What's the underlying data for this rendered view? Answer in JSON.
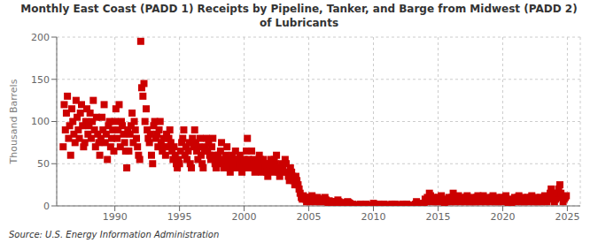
{
  "chart_data": {
    "type": "scatter",
    "title": "Monthly East Coast (PADD 1) Receipts by Pipeline, Tanker, and Barge from Midwest (PADD 2)\nof Lubricants",
    "y_label": "Thousand Barrels",
    "annotations": [
      "Source: U.S. Energy Information Administration"
    ],
    "color": "#cc0000",
    "marker": "square",
    "grid": true,
    "xlim": [
      1985.5,
      2026
    ],
    "ylim": [
      0,
      200
    ],
    "yticks": [
      0,
      50,
      100,
      150,
      200
    ],
    "xticks": [
      1990,
      1995,
      2000,
      2005,
      2010,
      2015,
      2020,
      2025
    ],
    "x": [
      1986.0,
      1986.08,
      1986.17,
      1986.25,
      1986.33,
      1986.42,
      1986.5,
      1986.58,
      1986.67,
      1986.75,
      1986.83,
      1986.92,
      1987.0,
      1987.08,
      1987.17,
      1987.25,
      1987.33,
      1987.42,
      1987.5,
      1987.58,
      1987.67,
      1987.75,
      1987.83,
      1987.92,
      1988.0,
      1988.08,
      1988.17,
      1988.25,
      1988.33,
      1988.42,
      1988.5,
      1988.58,
      1988.67,
      1988.75,
      1988.83,
      1988.92,
      1989.0,
      1989.08,
      1989.17,
      1989.25,
      1989.33,
      1989.42,
      1989.5,
      1989.58,
      1989.67,
      1989.75,
      1989.83,
      1989.92,
      1990.0,
      1990.08,
      1990.17,
      1990.25,
      1990.33,
      1990.42,
      1990.5,
      1990.58,
      1990.67,
      1990.75,
      1990.83,
      1990.92,
      1991.0,
      1991.08,
      1991.17,
      1991.25,
      1991.33,
      1991.42,
      1991.5,
      1991.58,
      1991.67,
      1991.75,
      1991.83,
      1991.92,
      1992.0,
      1992.08,
      1992.17,
      1992.25,
      1992.33,
      1992.42,
      1992.5,
      1992.58,
      1992.67,
      1992.75,
      1992.83,
      1992.92,
      1993.0,
      1993.08,
      1993.17,
      1993.25,
      1993.33,
      1993.42,
      1993.5,
      1993.58,
      1993.67,
      1993.75,
      1993.83,
      1993.92,
      1994.0,
      1994.08,
      1994.17,
      1994.25,
      1994.33,
      1994.42,
      1994.5,
      1994.58,
      1994.67,
      1994.75,
      1994.83,
      1994.92,
      1995.0,
      1995.08,
      1995.17,
      1995.25,
      1995.33,
      1995.42,
      1995.5,
      1995.58,
      1995.67,
      1995.75,
      1995.83,
      1995.92,
      1996.0,
      1996.08,
      1996.17,
      1996.25,
      1996.33,
      1996.42,
      1996.5,
      1996.58,
      1996.67,
      1996.75,
      1996.83,
      1996.92,
      1997.0,
      1997.08,
      1997.17,
      1997.25,
      1997.33,
      1997.42,
      1997.5,
      1997.58,
      1997.67,
      1997.75,
      1997.83,
      1997.92,
      1998.0,
      1998.08,
      1998.17,
      1998.25,
      1998.33,
      1998.42,
      1998.5,
      1998.58,
      1998.67,
      1998.75,
      1998.83,
      1998.92,
      1999.0,
      1999.08,
      1999.17,
      1999.25,
      1999.33,
      1999.42,
      1999.5,
      1999.58,
      1999.67,
      1999.75,
      1999.83,
      1999.92,
      2000.0,
      2000.08,
      2000.17,
      2000.25,
      2000.33,
      2000.42,
      2000.5,
      2000.58,
      2000.67,
      2000.75,
      2000.83,
      2000.92,
      2001.0,
      2001.08,
      2001.17,
      2001.25,
      2001.33,
      2001.42,
      2001.5,
      2001.58,
      2001.67,
      2001.75,
      2001.83,
      2001.92,
      2002.0,
      2002.08,
      2002.17,
      2002.25,
      2002.33,
      2002.42,
      2002.5,
      2002.58,
      2002.67,
      2002.75,
      2002.83,
      2002.92,
      2003.0,
      2003.08,
      2003.17,
      2003.25,
      2003.33,
      2003.42,
      2003.5,
      2003.58,
      2003.67,
      2003.75,
      2003.83,
      2003.92,
      2004.0,
      2004.08,
      2004.17,
      2004.25,
      2004.33,
      2004.42,
      2004.5,
      2004.58,
      2004.67,
      2004.75,
      2004.83,
      2004.92,
      2005.0,
      2005.08,
      2005.17,
      2005.25,
      2005.33,
      2005.42,
      2005.5,
      2005.58,
      2005.67,
      2005.75,
      2005.83,
      2005.92,
      2006.0,
      2006.08,
      2006.17,
      2006.25,
      2006.33,
      2006.42,
      2006.5,
      2006.58,
      2006.67,
      2006.75,
      2006.83,
      2006.92,
      2007.0,
      2007.08,
      2007.17,
      2007.25,
      2007.33,
      2007.42,
      2007.5,
      2007.58,
      2007.67,
      2007.75,
      2007.83,
      2007.92,
      2008.0,
      2008.08,
      2008.17,
      2008.25,
      2008.33,
      2008.42,
      2008.5,
      2008.58,
      2008.67,
      2008.75,
      2008.83,
      2008.92,
      2009.0,
      2009.08,
      2009.17,
      2009.25,
      2009.33,
      2009.42,
      2009.5,
      2009.58,
      2009.67,
      2009.75,
      2009.83,
      2009.92,
      2010.0,
      2010.08,
      2010.17,
      2010.25,
      2010.33,
      2010.42,
      2010.5,
      2010.58,
      2010.67,
      2010.75,
      2010.83,
      2010.92,
      2011.0,
      2011.08,
      2011.17,
      2011.25,
      2011.33,
      2011.42,
      2011.5,
      2011.58,
      2011.67,
      2011.75,
      2011.83,
      2011.92,
      2012.0,
      2012.08,
      2012.17,
      2012.25,
      2012.33,
      2012.42,
      2012.5,
      2012.58,
      2012.67,
      2012.75,
      2012.83,
      2012.92,
      2013.0,
      2013.08,
      2013.17,
      2013.25,
      2013.33,
      2013.42,
      2013.5,
      2013.58,
      2013.67,
      2013.75,
      2013.83,
      2013.92,
      2014.0,
      2014.08,
      2014.17,
      2014.25,
      2014.33,
      2014.42,
      2014.5,
      2014.58,
      2014.67,
      2014.75,
      2014.83,
      2014.92,
      2015.0,
      2015.08,
      2015.17,
      2015.25,
      2015.33,
      2015.42,
      2015.5,
      2015.58,
      2015.67,
      2015.75,
      2015.83,
      2015.92,
      2016.0,
      2016.08,
      2016.17,
      2016.25,
      2016.33,
      2016.42,
      2016.5,
      2016.58,
      2016.67,
      2016.75,
      2016.83,
      2016.92,
      2017.0,
      2017.08,
      2017.17,
      2017.25,
      2017.33,
      2017.42,
      2017.5,
      2017.58,
      2017.67,
      2017.75,
      2017.83,
      2017.92,
      2018.0,
      2018.08,
      2018.17,
      2018.25,
      2018.33,
      2018.42,
      2018.5,
      2018.58,
      2018.67,
      2018.75,
      2018.83,
      2018.92,
      2019.0,
      2019.08,
      2019.17,
      2019.25,
      2019.33,
      2019.42,
      2019.5,
      2019.58,
      2019.67,
      2019.75,
      2019.83,
      2019.92,
      2020.0,
      2020.08,
      2020.17,
      2020.25,
      2020.33,
      2020.42,
      2020.5,
      2020.58,
      2020.67,
      2020.75,
      2020.83,
      2020.92,
      2021.0,
      2021.08,
      2021.17,
      2021.25,
      2021.33,
      2021.42,
      2021.5,
      2021.58,
      2021.67,
      2021.75,
      2021.83,
      2021.92,
      2022.0,
      2022.08,
      2022.17,
      2022.25,
      2022.33,
      2022.42,
      2022.5,
      2022.58,
      2022.67,
      2022.75,
      2022.83,
      2022.92,
      2023.0,
      2023.08,
      2023.17,
      2023.25,
      2023.33,
      2023.42,
      2023.5,
      2023.58,
      2023.67,
      2023.75,
      2023.83,
      2023.92,
      2024.0,
      2024.08,
      2024.17,
      2024.25,
      2024.33,
      2024.42,
      2024.5,
      2024.58,
      2024.67,
      2024.75,
      2024.83,
      2024.92
    ],
    "values": [
      70,
      120,
      90,
      110,
      130,
      80,
      95,
      60,
      115,
      100,
      85,
      75,
      125,
      105,
      90,
      80,
      110,
      120,
      95,
      70,
      75,
      100,
      115,
      85,
      95,
      110,
      80,
      100,
      125,
      90,
      70,
      105,
      85,
      75,
      60,
      80,
      105,
      90,
      120,
      75,
      85,
      55,
      95,
      100,
      70,
      80,
      90,
      65,
      100,
      115,
      80,
      90,
      120,
      70,
      100,
      95,
      85,
      75,
      65,
      45,
      90,
      65,
      85,
      95,
      110,
      75,
      100,
      90,
      80,
      70,
      60,
      55,
      195,
      140,
      130,
      145,
      100,
      115,
      90,
      80,
      75,
      85,
      60,
      50,
      95,
      100,
      80,
      85,
      70,
      90,
      100,
      75,
      65,
      80,
      70,
      60,
      85,
      70,
      80,
      90,
      75,
      65,
      55,
      70,
      60,
      50,
      45,
      55,
      50,
      65,
      75,
      80,
      90,
      60,
      70,
      55,
      65,
      75,
      50,
      45,
      80,
      70,
      90,
      75,
      65,
      55,
      70,
      80,
      60,
      50,
      45,
      65,
      70,
      80,
      65,
      75,
      60,
      55,
      70,
      80,
      60,
      50,
      45,
      55,
      60,
      50,
      65,
      75,
      55,
      45,
      50,
      60,
      70,
      55,
      45,
      40,
      50,
      60,
      45,
      55,
      65,
      50,
      55,
      45,
      60,
      50,
      40,
      45,
      55,
      50,
      65,
      80,
      55,
      45,
      50,
      65,
      45,
      55,
      40,
      50,
      45,
      50,
      60,
      55,
      40,
      45,
      55,
      50,
      45,
      40,
      35,
      45,
      50,
      55,
      45,
      40,
      55,
      50,
      60,
      45,
      40,
      35,
      45,
      50,
      45,
      40,
      55,
      50,
      40,
      35,
      30,
      45,
      40,
      35,
      30,
      25,
      35,
      30,
      25,
      20,
      15,
      10,
      8,
      12,
      10,
      8,
      5,
      10,
      8,
      5,
      10,
      12,
      8,
      6,
      5,
      8,
      10,
      7,
      5,
      8,
      6,
      5,
      8,
      10,
      7,
      5,
      4,
      6,
      5,
      4,
      3,
      5,
      4,
      3,
      5,
      7,
      5,
      3,
      2,
      4,
      3,
      2,
      2,
      3,
      5,
      4,
      3,
      2,
      1,
      2,
      1,
      0,
      1,
      1,
      0,
      1,
      2,
      1,
      1,
      0,
      1,
      2,
      1,
      0,
      0,
      1,
      1,
      0,
      3,
      2,
      1,
      0,
      1,
      2,
      1,
      0,
      0,
      1,
      2,
      1,
      1,
      0,
      0,
      1,
      1,
      2,
      0,
      1,
      2,
      1,
      0,
      1,
      0,
      0,
      1,
      2,
      1,
      0,
      1,
      2,
      0,
      1,
      1,
      0,
      0,
      0,
      1,
      2,
      5,
      3,
      2,
      1,
      0,
      2,
      1,
      3,
      8,
      5,
      10,
      7,
      15,
      12,
      8,
      5,
      10,
      7,
      5,
      8,
      10,
      5,
      8,
      12,
      7,
      5,
      3,
      8,
      5,
      7,
      10,
      8,
      5,
      10,
      15,
      8,
      5,
      7,
      10,
      12,
      8,
      5,
      7,
      10,
      8,
      5,
      10,
      12,
      7,
      5,
      8,
      10,
      5,
      7,
      8,
      5,
      10,
      12,
      8,
      5,
      7,
      10,
      12,
      8,
      5,
      7,
      10,
      8,
      5,
      8,
      10,
      12,
      7,
      5,
      8,
      10,
      5,
      7,
      8,
      10,
      5,
      8,
      10,
      12,
      7,
      0,
      5,
      8,
      3,
      5,
      7,
      10,
      5,
      8,
      10,
      12,
      7,
      5,
      8,
      10,
      5,
      7,
      8,
      10,
      5,
      8,
      10,
      12,
      7,
      5,
      8,
      10,
      5,
      7,
      8,
      10,
      5,
      8,
      10,
      12,
      7,
      5,
      8,
      10,
      15,
      20,
      15,
      10,
      5,
      8,
      10,
      15,
      20,
      25,
      15,
      10,
      5,
      8,
      10,
      12
    ]
  }
}
